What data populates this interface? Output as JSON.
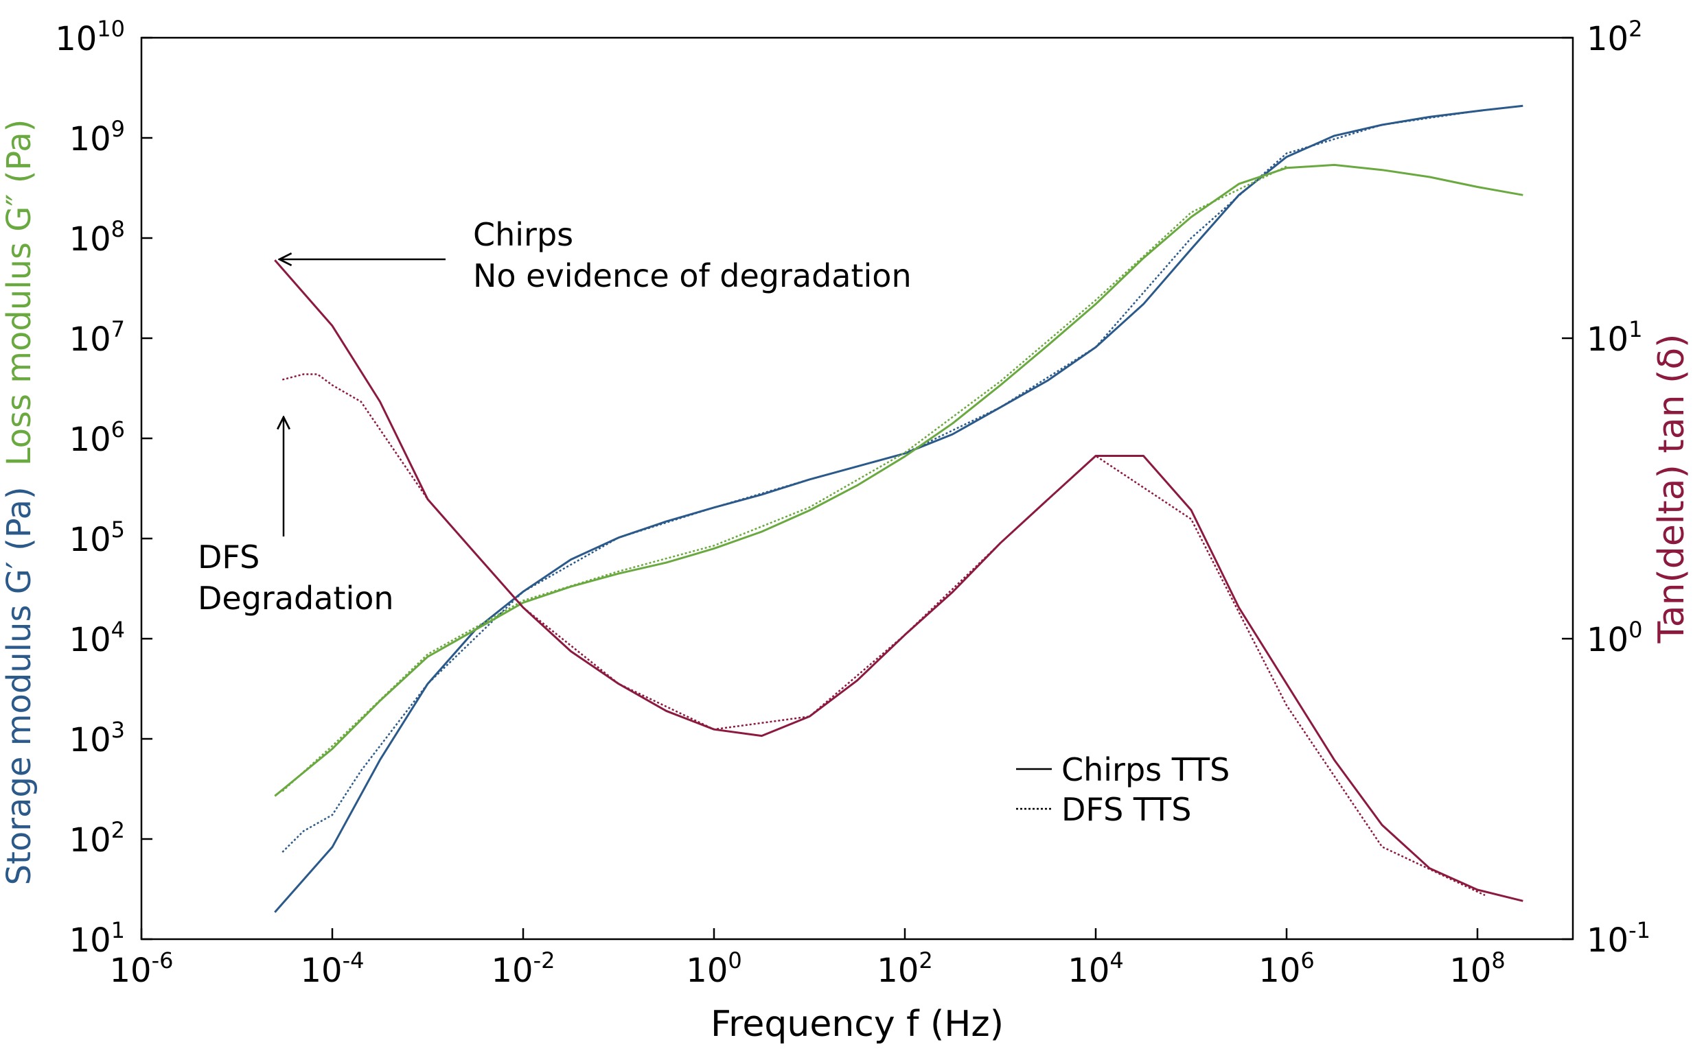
{
  "chart_data": {
    "type": "line",
    "x_label": "Frequency f (Hz)",
    "y_label": [
      {
        "text": "Storage modulus G′ (Pa)",
        "color": "#2b5a8a"
      },
      {
        "text": "Loss modulus G″ (Pa)",
        "color": "#6aa840"
      }
    ],
    "y2_label": {
      "text": "Tan(delta) tan (δ)",
      "color": "#8b1a3e"
    },
    "log_x": true,
    "log_y": true,
    "log_y2": true,
    "xlim": [
      1e-06,
      1000000000.0
    ],
    "ylim": [
      10,
      10000000000.0
    ],
    "y2lim": [
      0.1,
      100
    ],
    "xticks": [
      {
        "value": 1e-06,
        "label": [
          "10",
          "-6"
        ]
      },
      {
        "value": 0.0001,
        "label": [
          "10",
          "-4"
        ]
      },
      {
        "value": 0.01,
        "label": [
          "10",
          "-2"
        ]
      },
      {
        "value": 1,
        "label": [
          "10",
          "0"
        ]
      },
      {
        "value": 100,
        "label": [
          "10",
          "2"
        ]
      },
      {
        "value": 10000,
        "label": [
          "10",
          "4"
        ]
      },
      {
        "value": 1000000,
        "label": [
          "10",
          "6"
        ]
      },
      {
        "value": 100000000,
        "label": [
          "10",
          "8"
        ]
      }
    ],
    "yticks": [
      {
        "value": 10,
        "label": [
          "10",
          "1"
        ]
      },
      {
        "value": 100,
        "label": [
          "10",
          "2"
        ]
      },
      {
        "value": 1000,
        "label": [
          "10",
          "3"
        ]
      },
      {
        "value": 10000,
        "label": [
          "10",
          "4"
        ]
      },
      {
        "value": 100000,
        "label": [
          "10",
          "5"
        ]
      },
      {
        "value": 1000000,
        "label": [
          "10",
          "6"
        ]
      },
      {
        "value": 10000000,
        "label": [
          "10",
          "7"
        ]
      },
      {
        "value": 100000000,
        "label": [
          "10",
          "8"
        ]
      },
      {
        "value": 1000000000,
        "label": [
          "10",
          "9"
        ]
      },
      {
        "value": 10000000000,
        "label": [
          "10",
          "10"
        ]
      }
    ],
    "y2ticks": [
      {
        "value": 0.1,
        "label": [
          "10",
          "-1"
        ]
      },
      {
        "value": 1,
        "label": [
          "10",
          "0"
        ]
      },
      {
        "value": 10,
        "label": [
          "10",
          "1"
        ]
      },
      {
        "value": 100,
        "label": [
          "10",
          "2"
        ]
      }
    ],
    "series": [
      {
        "color": "#2b5a8a",
        "dash": "solid",
        "axis": "y",
        "x": [
          2.5e-05,
          0.0001,
          0.000316,
          0.001,
          0.00316,
          0.01,
          0.0316,
          0.1,
          0.316,
          1,
          3.16,
          10,
          31.6,
          100,
          316,
          1000,
          3160,
          10000,
          31600,
          100000,
          316000,
          1000000.0,
          3160000.0,
          10000000.0,
          31600000.0,
          100000000.0,
          300000000.0
        ],
        "values": [
          18.6,
          83,
          617,
          3550,
          12300,
          29500,
          61700,
          102000,
          148000,
          204000,
          275000,
          389000,
          525000,
          708000,
          1100000,
          2040000,
          3800000,
          8130000,
          21900000,
          77600000,
          269000000,
          646000000,
          1050000000,
          1350000000,
          1620000000,
          1860000000,
          2090000000
        ]
      },
      {
        "color": "#2b5a8a",
        "dash": "dotted",
        "axis": "y",
        "x": [
          3e-05,
          5e-05,
          0.0001,
          0.0002,
          0.001,
          0.01,
          0.1,
          1,
          10,
          100,
          1000,
          10000,
          100000,
          1000000.0,
          10000000.0,
          100000000.0,
          300000000.0
        ],
        "values": [
          74,
          120,
          174,
          480,
          3550,
          29500,
          102000,
          204000,
          389000,
          708000,
          2040000,
          8130000,
          100000000,
          700000000,
          1350000000,
          1860000000,
          2090000000
        ]
      },
      {
        "color": "#6aa840",
        "dash": "solid",
        "axis": "y",
        "x": [
          2.5e-05,
          0.0001,
          0.000316,
          0.001,
          0.00316,
          0.01,
          0.0316,
          0.1,
          0.316,
          1,
          3.16,
          10,
          31.6,
          100,
          316,
          1000,
          3160,
          10000,
          31600,
          100000,
          316000,
          1000000.0,
          3160000.0,
          10000000.0,
          31600000.0,
          100000000.0,
          300000000.0
        ],
        "values": [
          269,
          794,
          2400,
          6610,
          12300,
          22900,
          33100,
          44700,
          57500,
          79400,
          117000,
          191000,
          339000,
          661000,
          1410000,
          3390000,
          8510000,
          21900000,
          63100000,
          162000000,
          347000000,
          501000000,
          537000000,
          479000000,
          407000000,
          324000000,
          269000000
        ]
      },
      {
        "color": "#6aa840",
        "dash": "dotted",
        "axis": "y",
        "x": [
          3e-05,
          0.0001,
          0.001,
          0.01,
          0.1,
          1,
          10,
          100,
          1000,
          10000,
          100000,
          1000000.0
        ],
        "values": [
          300,
          850,
          7000,
          24000,
          47000,
          85000,
          205000,
          720000,
          3700000,
          24000000,
          180000000,
          520000000
        ]
      },
      {
        "color": "#8b1a3e",
        "dash": "solid",
        "axis": "y2",
        "x": [
          2.5e-05,
          0.0001,
          0.000316,
          0.001,
          0.00316,
          0.01,
          0.0316,
          0.1,
          0.316,
          1,
          3.16,
          10,
          31.6,
          100,
          316,
          1000,
          3160,
          10000,
          31600,
          100000,
          316000,
          1000000.0,
          3160000.0,
          10000000.0,
          31600000.0,
          100000000.0,
          300000000.0
        ],
        "values": [
          18.2,
          11.0,
          6.15,
          2.91,
          1.92,
          1.27,
          0.908,
          0.708,
          0.575,
          0.499,
          0.475,
          0.551,
          0.726,
          1.03,
          1.43,
          2.08,
          2.91,
          4.06,
          4.06,
          2.68,
          1.27,
          0.708,
          0.395,
          0.24,
          0.172,
          0.146,
          0.134
        ]
      },
      {
        "color": "#8b1a3e",
        "dash": "dotted",
        "axis": "y2",
        "x": [
          3e-05,
          5e-05,
          7e-05,
          0.0001,
          0.0002,
          0.001,
          0.01,
          0.1,
          1,
          10,
          100,
          1000,
          10000,
          100000,
          1000000.0,
          10000000.0,
          120000000.0
        ],
        "values": [
          7.28,
          7.59,
          7.59,
          6.98,
          6.15,
          2.91,
          1.27,
          0.708,
          0.499,
          0.551,
          1.03,
          2.08,
          4.06,
          2.5,
          0.6,
          0.203,
          0.14
        ]
      }
    ],
    "legend": [
      {
        "label": "Chirps TTS",
        "dash": "solid"
      },
      {
        "label": "DFS TTS",
        "dash": "dotted"
      }
    ],
    "legend_position": "lower right",
    "annotations": [
      {
        "lines": [
          "Chirps",
          "No evidence of degradation"
        ]
      },
      {
        "lines": [
          "DFS",
          "Degradation"
        ]
      }
    ]
  }
}
